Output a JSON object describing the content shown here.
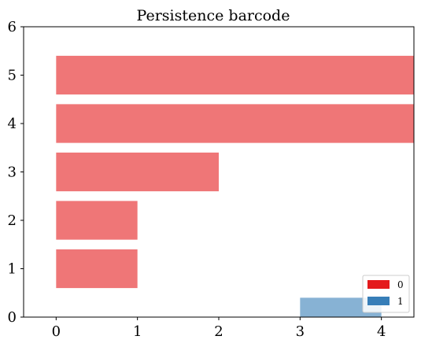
{
  "chart_data": {
    "type": "bar",
    "orientation": "horizontal",
    "title": "Persistence barcode",
    "xlabel": "",
    "ylabel": "",
    "xlim": [
      -0.4,
      4.4
    ],
    "ylim": [
      0,
      6
    ],
    "xticks": [
      "0",
      "1",
      "2",
      "3",
      "4"
    ],
    "yticks": [
      "0",
      "1",
      "2",
      "3",
      "4",
      "5",
      "6"
    ],
    "grid": false,
    "legend_position": "bottom-right",
    "series": [
      {
        "name": "0",
        "color": "#e41a1c",
        "bars": [
          {
            "y": 1,
            "start": 0,
            "end": 1
          },
          {
            "y": 2,
            "start": 0,
            "end": 1
          },
          {
            "y": 3,
            "start": 0,
            "end": 2
          },
          {
            "y": 4,
            "start": 0,
            "end": "inf"
          },
          {
            "y": 5,
            "start": 0,
            "end": "inf"
          }
        ]
      },
      {
        "name": "1",
        "color": "#377eb8",
        "bars": [
          {
            "y": 0,
            "start": 3,
            "end": 4
          }
        ]
      }
    ]
  }
}
